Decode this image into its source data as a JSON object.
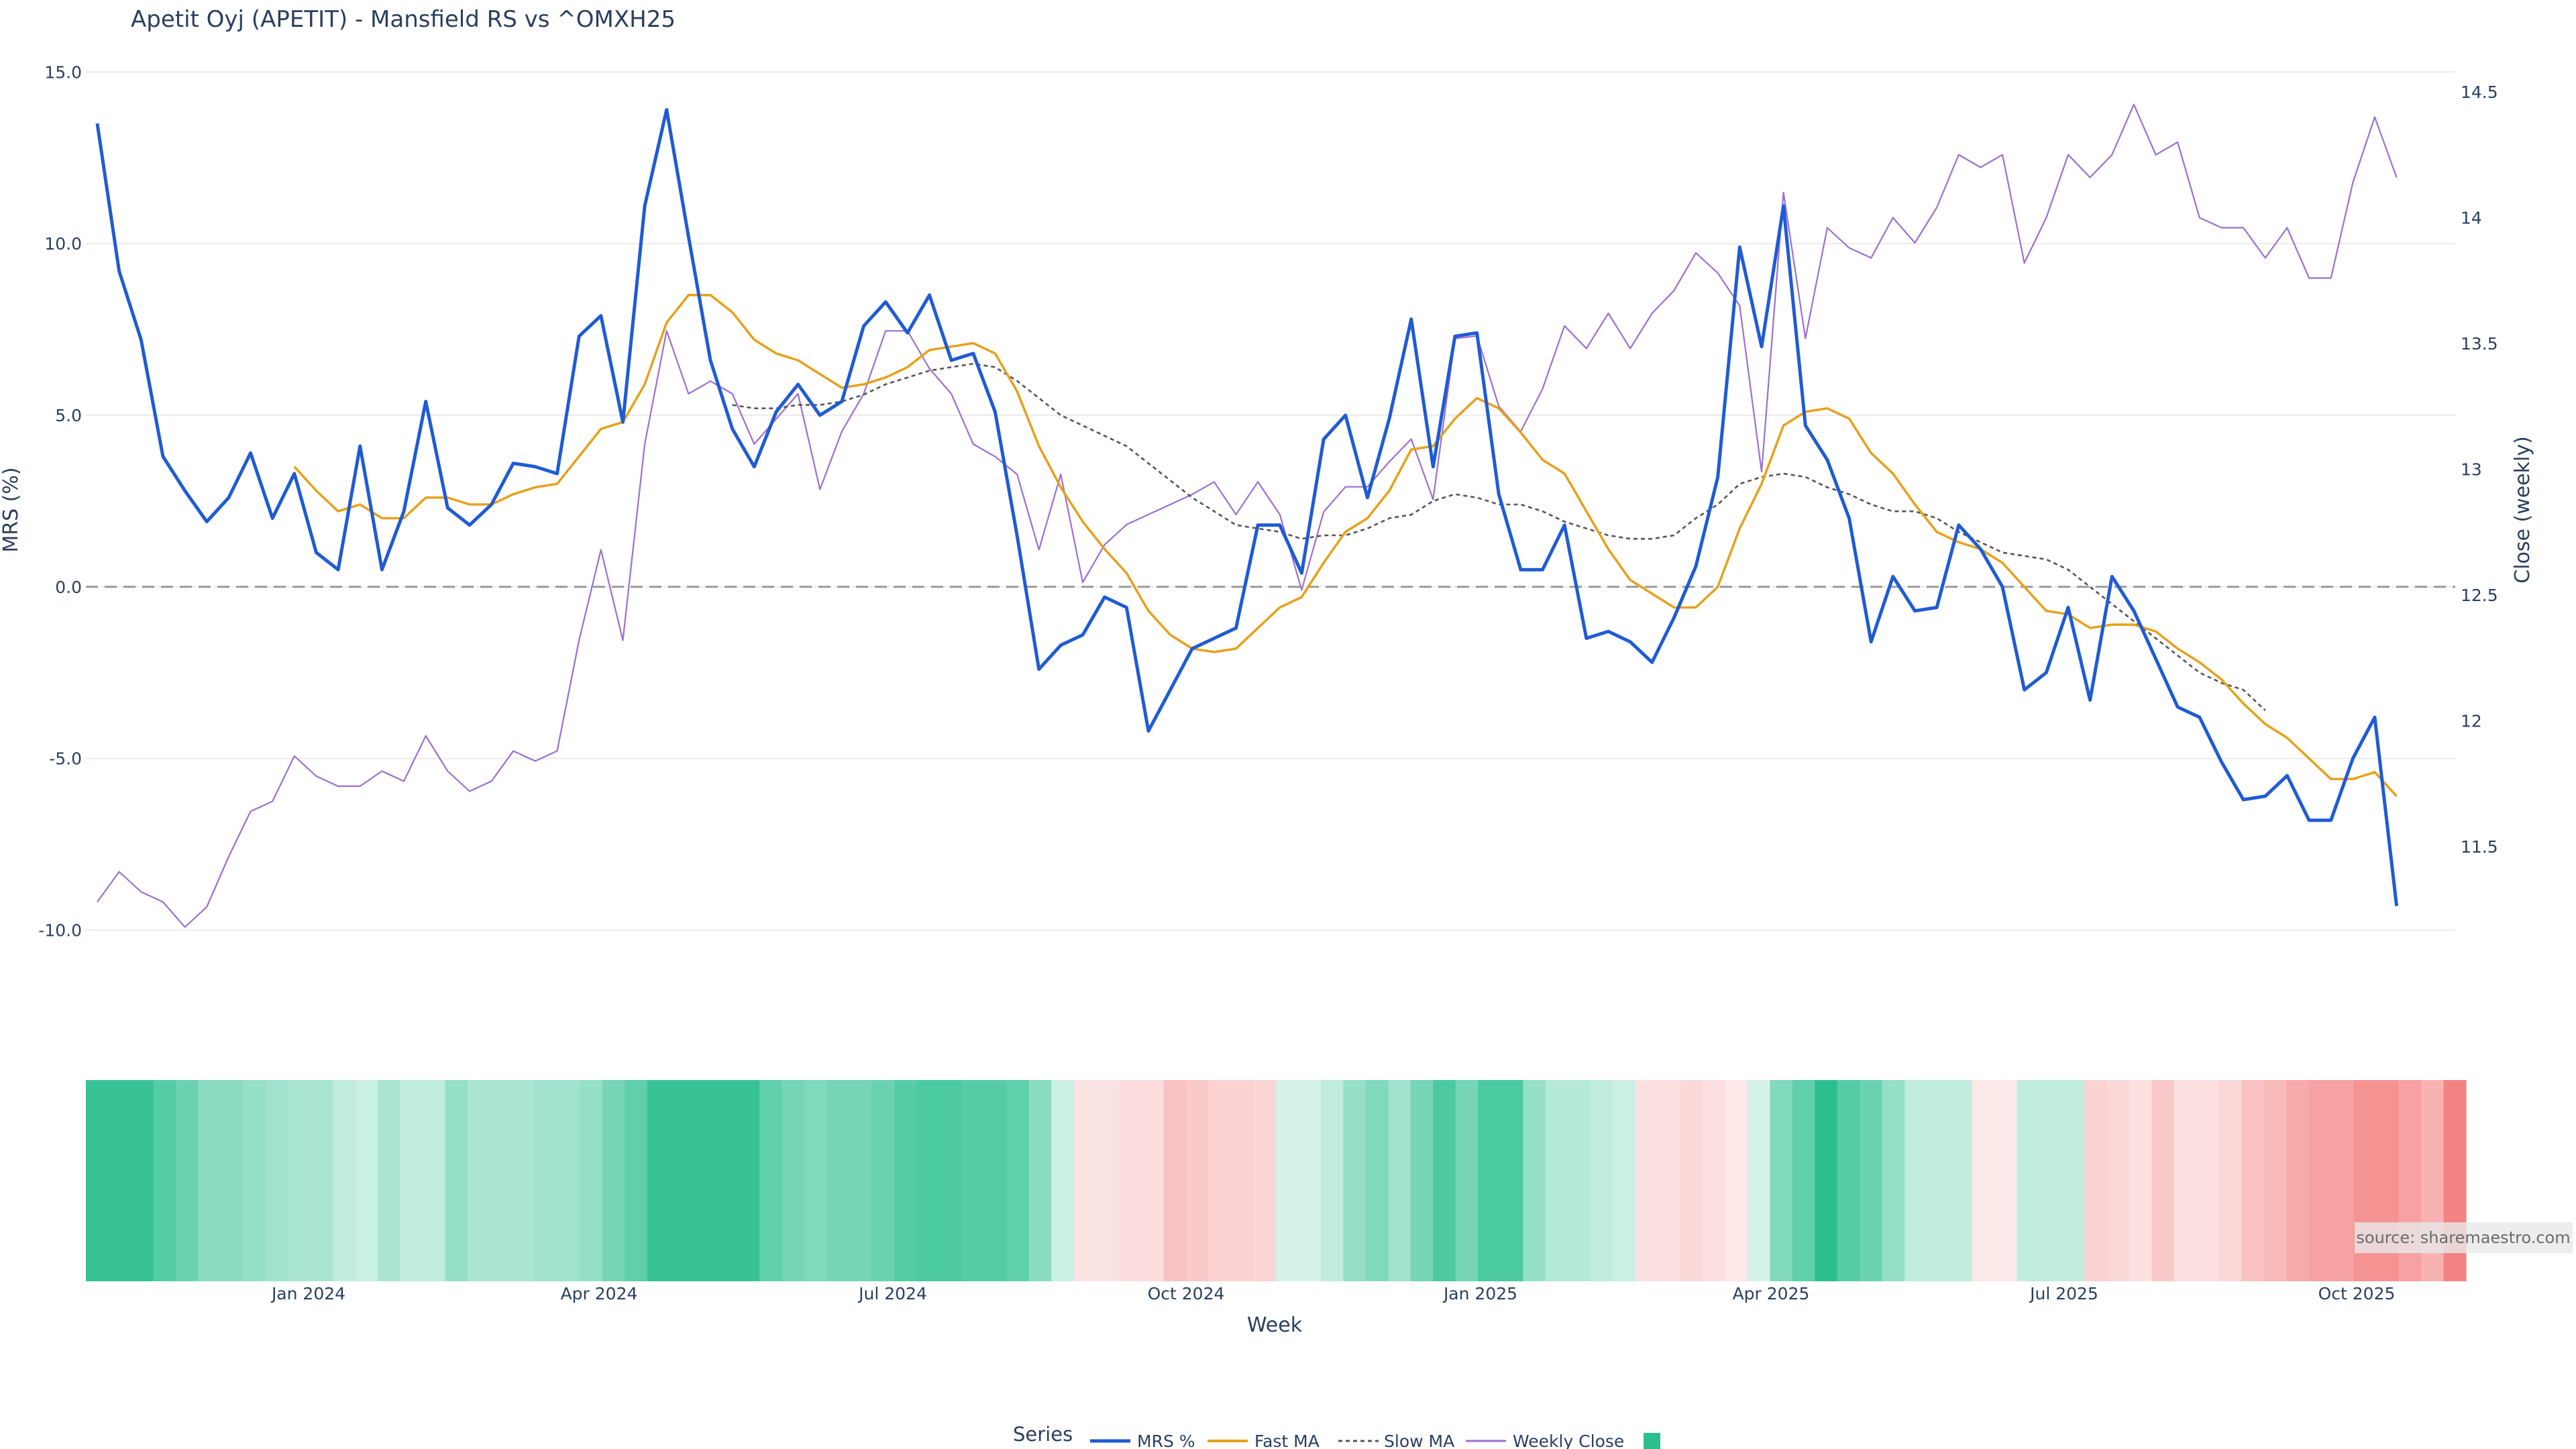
{
  "chart_data": {
    "type": "line",
    "title": "Apetit Oyj (APETIT) - Mansfield RS vs ^OMXH25",
    "xlabel": "Week",
    "ylabel": "MRS (%)",
    "y2label": "Close (weekly)",
    "ylim": [
      -10.5,
      15.3
    ],
    "y2lim": [
      11.1,
      14.62
    ],
    "yticks": [
      "15.0",
      "10.0",
      "5.0",
      "0.0",
      "-5.0",
      "-10.0"
    ],
    "y2ticks": [
      "14.5",
      "14",
      "13.5",
      "13",
      "12.5",
      "12",
      "11.5"
    ],
    "xticks": [
      "Jan 2024",
      "Apr 2024",
      "Jul 2024",
      "Oct 2024",
      "Jan 2025",
      "Apr 2025",
      "Jul 2025",
      "Oct 2025"
    ],
    "grid": true,
    "legend_position": "bottom",
    "legend_title": "Series",
    "zero_line": 0,
    "series": [
      {
        "name": "MRS %",
        "color": "#1f5bd4",
        "axis": "left",
        "start_week": 0,
        "values": [
          13.5,
          9.2,
          7.2,
          3.8,
          2.8,
          1.9,
          2.6,
          3.9,
          2.0,
          3.3,
          1.0,
          0.5,
          4.1,
          0.5,
          2.2,
          5.4,
          2.3,
          1.8,
          2.4,
          3.6,
          3.5,
          3.3,
          7.3,
          7.9,
          4.8,
          11.1,
          13.9,
          10.2,
          6.6,
          4.6,
          3.5,
          5.1,
          5.9,
          5.0,
          5.4,
          7.6,
          8.3,
          7.4,
          8.5,
          6.6,
          6.8,
          5.1,
          1.5,
          -2.4,
          -1.7,
          -1.4,
          -0.3,
          -0.6,
          -4.2,
          -3.0,
          -1.8,
          -1.5,
          -1.2,
          1.8,
          1.8,
          0.4,
          4.3,
          5.0,
          2.6,
          4.9,
          7.8,
          3.5,
          7.3,
          7.4,
          2.7,
          0.5,
          0.5,
          1.8,
          -1.5,
          -1.3,
          -1.6,
          -2.2,
          -0.9,
          0.6,
          3.2,
          9.9,
          7.0,
          11.1,
          4.7,
          3.7,
          2.0,
          -1.6,
          0.3,
          -0.7,
          -0.6,
          1.8,
          1.1,
          0.0,
          -3.0,
          -2.5,
          -0.6,
          -3.3,
          0.3,
          -0.7,
          -2.1,
          -3.5,
          -3.8,
          -5.1,
          -6.2,
          -6.1,
          -5.5,
          -6.8,
          -6.8,
          -5.0,
          -3.8,
          -9.3
        ]
      },
      {
        "name": "Fast MA",
        "color": "#e6a11a",
        "axis": "left",
        "start_week": 9,
        "values": [
          3.5,
          2.8,
          2.2,
          2.4,
          2.0,
          2.0,
          2.6,
          2.6,
          2.4,
          2.4,
          2.7,
          2.9,
          3.0,
          3.8,
          4.6,
          4.8,
          5.9,
          7.7,
          8.5,
          8.5,
          8.0,
          7.2,
          6.8,
          6.6,
          6.2,
          5.8,
          5.9,
          6.1,
          6.4,
          6.9,
          7.0,
          7.1,
          6.8,
          5.7,
          4.1,
          2.9,
          1.9,
          1.1,
          0.4,
          -0.7,
          -1.4,
          -1.8,
          -1.9,
          -1.8,
          -1.2,
          -0.6,
          -0.3,
          0.7,
          1.6,
          2.0,
          2.8,
          4.0,
          4.1,
          4.9,
          5.5,
          5.2,
          4.5,
          3.7,
          3.3,
          2.2,
          1.1,
          0.2,
          -0.2,
          -0.6,
          -0.6,
          0.0,
          1.7,
          3.0,
          4.7,
          5.1,
          5.2,
          4.9,
          3.9,
          3.3,
          2.4,
          1.6,
          1.3,
          1.1,
          0.7,
          0.0,
          -0.7,
          -0.8,
          -1.2,
          -1.1,
          -1.1,
          -1.3,
          -1.8,
          -2.2,
          -2.7,
          -3.4,
          -4.0,
          -4.4,
          -5.0,
          -5.6,
          -5.6,
          -5.4,
          -6.1
        ]
      },
      {
        "name": "Slow MA",
        "color": "#555555",
        "axis": "left",
        "start_week": 29,
        "values": [
          5.3,
          5.2,
          5.2,
          5.3,
          5.3,
          5.4,
          5.6,
          5.9,
          6.1,
          6.3,
          6.4,
          6.5,
          6.4,
          6.0,
          5.5,
          5.0,
          4.7,
          4.4,
          4.1,
          3.6,
          3.1,
          2.6,
          2.2,
          1.8,
          1.7,
          1.6,
          1.4,
          1.5,
          1.5,
          1.7,
          2.0,
          2.1,
          2.5,
          2.7,
          2.6,
          2.4,
          2.4,
          2.2,
          1.9,
          1.7,
          1.5,
          1.4,
          1.4,
          1.5,
          2.0,
          2.4,
          3.0,
          3.2,
          3.3,
          3.2,
          2.9,
          2.7,
          2.4,
          2.2,
          2.2,
          2.0,
          1.6,
          1.3,
          1.0,
          0.9,
          0.8,
          0.5,
          0.0,
          -0.5,
          -1.0,
          -1.5,
          -2.0,
          -2.5,
          -2.8,
          -3.0,
          -3.6
        ]
      },
      {
        "name": "Weekly Close",
        "color": "#9b6fd0",
        "axis": "right",
        "start_week": 0,
        "values": [
          11.28,
          11.4,
          11.32,
          11.28,
          11.18,
          11.26,
          11.46,
          11.64,
          11.68,
          11.86,
          11.78,
          11.74,
          11.74,
          11.8,
          11.76,
          11.94,
          11.8,
          11.72,
          11.76,
          11.88,
          11.84,
          11.88,
          12.32,
          12.68,
          12.32,
          13.1,
          13.55,
          13.3,
          13.35,
          13.3,
          13.1,
          13.2,
          13.3,
          12.92,
          13.15,
          13.3,
          13.55,
          13.55,
          13.4,
          13.3,
          13.1,
          13.05,
          12.98,
          12.68,
          12.98,
          12.55,
          12.7,
          12.78,
          12.82,
          12.86,
          12.9,
          12.95,
          12.82,
          12.95,
          12.82,
          12.52,
          12.83,
          12.93,
          12.93,
          13.03,
          13.12,
          12.88,
          13.52,
          13.53,
          13.25,
          13.15,
          13.32,
          13.57,
          13.48,
          13.62,
          13.48,
          13.62,
          13.71,
          13.86,
          13.78,
          13.65,
          12.99,
          14.1,
          13.52,
          13.96,
          13.88,
          13.84,
          14.0,
          13.9,
          14.04,
          14.25,
          14.2,
          14.25,
          13.82,
          14.0,
          14.25,
          14.16,
          14.25,
          14.45,
          14.25,
          14.3,
          14.0,
          13.96,
          13.96,
          13.84,
          13.96,
          13.76,
          13.76,
          14.14,
          14.4,
          14.16
        ]
      }
    ],
    "heat_strip": {
      "name": "",
      "color": "#2bbf8f",
      "levels": [
        0.95,
        0.95,
        0.95,
        0.8,
        0.7,
        0.55,
        0.55,
        0.5,
        0.45,
        0.4,
        0.4,
        0.3,
        0.25,
        0.4,
        0.3,
        0.3,
        0.5,
        0.4,
        0.4,
        0.4,
        0.45,
        0.45,
        0.5,
        0.65,
        0.75,
        0.95,
        0.95,
        0.95,
        0.95,
        0.95,
        0.75,
        0.65,
        0.6,
        0.65,
        0.65,
        0.7,
        0.8,
        0.85,
        0.85,
        0.8,
        0.8,
        0.75,
        0.55,
        0.25,
        -0.18,
        -0.18,
        -0.22,
        -0.22,
        -0.4,
        -0.35,
        -0.3,
        -0.3,
        -0.28,
        0.2,
        0.2,
        0.3,
        0.5,
        0.6,
        0.45,
        0.65,
        0.85,
        0.65,
        0.85,
        0.85,
        0.5,
        0.35,
        0.35,
        0.3,
        0.25,
        -0.2,
        -0.2,
        -0.25,
        -0.2,
        -0.15,
        0.2,
        0.6,
        0.75,
        1.0,
        0.8,
        0.7,
        0.5,
        0.3,
        0.3,
        0.3,
        -0.15,
        -0.15,
        0.3,
        0.3,
        0.3,
        -0.3,
        -0.25,
        -0.2,
        -0.35,
        -0.2,
        -0.2,
        -0.25,
        -0.4,
        -0.45,
        -0.55,
        -0.6,
        -0.6,
        -0.7,
        -0.7,
        -0.6,
        -0.5,
        -0.8
      ]
    },
    "source": "source: sharemaestro.com"
  }
}
